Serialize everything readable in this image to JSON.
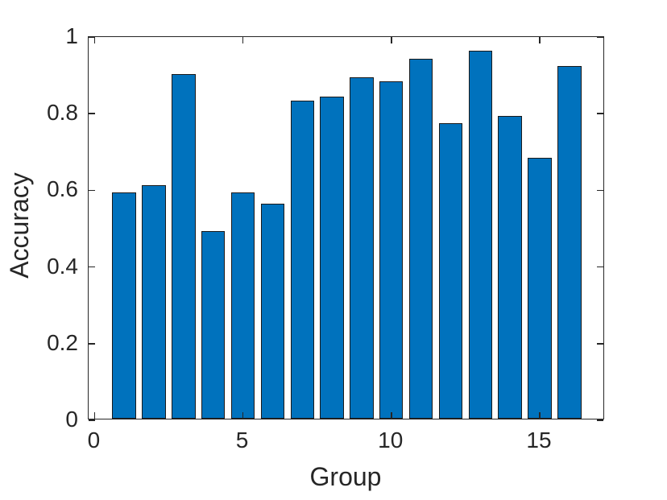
{
  "chart_data": {
    "type": "bar",
    "title": "",
    "xlabel": "Group",
    "ylabel": "Accuracy",
    "categories": [
      1,
      2,
      3,
      4,
      5,
      6,
      7,
      8,
      9,
      10,
      11,
      12,
      13,
      14,
      15,
      16
    ],
    "values": [
      0.59,
      0.61,
      0.9,
      0.49,
      0.59,
      0.56,
      0.83,
      0.84,
      0.89,
      0.88,
      0.94,
      0.77,
      0.96,
      0.79,
      0.68,
      0.92
    ],
    "xlim": [
      -0.2,
      17.2
    ],
    "ylim": [
      0,
      1
    ],
    "xticks": [
      0,
      5,
      10,
      15
    ],
    "xtick_labels": [
      "0",
      "5",
      "10",
      "15"
    ],
    "yticks": [
      0,
      0.2,
      0.4,
      0.6,
      0.8,
      1
    ],
    "ytick_labels": [
      "0",
      "0.2",
      "0.4",
      "0.6",
      "0.8",
      "1"
    ],
    "bar_width": 0.8,
    "bar_color": "#0072BD",
    "bar_edge_color": "#1a1a1a",
    "axis_color": "#262626",
    "text_color": "#262626",
    "grid": false,
    "legend": null,
    "tick_direction": "in",
    "box": true
  }
}
